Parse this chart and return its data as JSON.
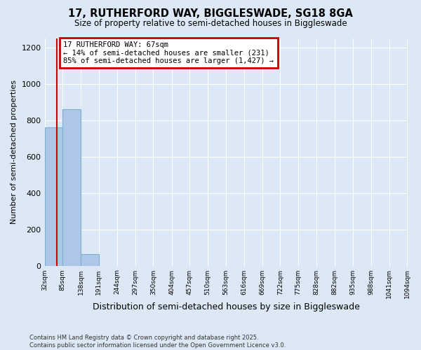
{
  "title_line1": "17, RUTHERFORD WAY, BIGGLESWADE, SG18 8GA",
  "title_line2": "Size of property relative to semi-detached houses in Biggleswade",
  "xlabel": "Distribution of semi-detached houses by size in Biggleswade",
  "ylabel": "Number of semi-detached properties",
  "footnote": "Contains HM Land Registry data © Crown copyright and database right 2025.\nContains public sector information licensed under the Open Government Licence v3.0.",
  "bin_edges": [
    32,
    85,
    138,
    191,
    244,
    297,
    350,
    404,
    457,
    510,
    563,
    616,
    669,
    722,
    775,
    828,
    882,
    935,
    988,
    1041,
    1094
  ],
  "bar_heights": [
    760,
    860,
    65,
    0,
    0,
    0,
    0,
    0,
    0,
    0,
    0,
    0,
    0,
    0,
    0,
    0,
    0,
    0,
    0,
    0
  ],
  "bar_color": "#aec6e8",
  "bar_edgecolor": "#7bafd4",
  "property_size": 67,
  "property_label": "17 RUTHERFORD WAY: 67sqm",
  "annotation_line2": "← 14% of semi-detached houses are smaller (231)",
  "annotation_line3": "85% of semi-detached houses are larger (1,427) →",
  "annotation_box_color": "white",
  "annotation_box_edgecolor": "#cc0000",
  "vline_color": "#cc0000",
  "ylim": [
    0,
    1250
  ],
  "yticks": [
    0,
    200,
    400,
    600,
    800,
    1000,
    1200
  ],
  "background_color": "#dce8f5",
  "grid_color": "white"
}
